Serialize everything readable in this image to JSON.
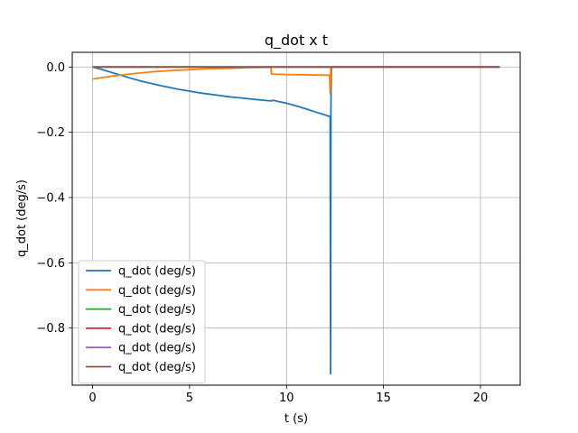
{
  "chart_data": {
    "type": "line",
    "title": "q_dot x t",
    "xlabel": "t (s)",
    "ylabel": "q_dot (deg/s)",
    "xlim": [
      -1.05,
      22.05
    ],
    "ylim": [
      -0.975,
      0.045
    ],
    "xticks": [
      0,
      5,
      10,
      15,
      20
    ],
    "yticks": [
      0.0,
      -0.2,
      -0.4,
      -0.6,
      -0.8
    ],
    "xtick_labels": [
      "0",
      "5",
      "10",
      "15",
      "20"
    ],
    "ytick_labels": [
      "0.0",
      "−0.2",
      "−0.4",
      "−0.6",
      "−0.8"
    ],
    "grid": true,
    "legend_position": "lower-left",
    "series": [
      {
        "name": "q_dot (deg/s)",
        "color": "#1f77b4",
        "x": [
          0,
          0.5,
          1,
          1.5,
          2,
          2.5,
          3,
          3.5,
          4,
          4.5,
          5,
          5.5,
          6,
          6.5,
          7,
          7.5,
          8,
          8.5,
          9,
          9.2,
          9.3,
          9.6,
          10,
          10.5,
          11,
          11.5,
          12,
          12.2,
          12.25,
          12.27,
          12.29,
          12.31,
          12.33,
          12.4,
          13,
          15,
          18,
          21
        ],
        "y": [
          0,
          -0.008,
          -0.017,
          -0.026,
          -0.035,
          -0.043,
          -0.05,
          -0.057,
          -0.063,
          -0.069,
          -0.074,
          -0.079,
          -0.083,
          -0.087,
          -0.091,
          -0.094,
          -0.097,
          -0.1,
          -0.103,
          -0.104,
          -0.102,
          -0.106,
          -0.111,
          -0.119,
          -0.128,
          -0.138,
          -0.147,
          -0.151,
          -0.153,
          -0.94,
          -0.12,
          -0.01,
          0,
          0,
          0,
          0,
          0,
          0
        ]
      },
      {
        "name": "q_dot (deg/s)",
        "color": "#ff7f0e",
        "x": [
          0,
          1,
          2,
          3,
          4,
          5,
          6,
          7,
          8,
          9,
          9.2,
          9.22,
          9.5,
          10,
          11,
          12,
          12.2,
          12.22,
          12.25,
          12.28,
          12.3,
          13,
          15,
          18,
          21
        ],
        "y": [
          -0.037,
          -0.028,
          -0.021,
          -0.015,
          -0.011,
          -0.008,
          -0.005,
          -0.004,
          -0.002,
          -0.001,
          -0.001,
          -0.022,
          -0.022,
          -0.023,
          -0.024,
          -0.025,
          -0.025,
          -0.025,
          -0.082,
          -0.002,
          0,
          0,
          0,
          0,
          0
        ]
      },
      {
        "name": "q_dot (deg/s)",
        "color": "#2ca02c",
        "x": [
          0,
          21
        ],
        "y": [
          0,
          0
        ]
      },
      {
        "name": "q_dot (deg/s)",
        "color": "#d62728",
        "x": [
          0,
          21
        ],
        "y": [
          0,
          0
        ]
      },
      {
        "name": "q_dot (deg/s)",
        "color": "#9467bd",
        "x": [
          0,
          21
        ],
        "y": [
          0,
          0
        ]
      },
      {
        "name": "q_dot (deg/s)",
        "color": "#8c564b",
        "x": [
          0,
          21
        ],
        "y": [
          0,
          0
        ]
      }
    ]
  }
}
